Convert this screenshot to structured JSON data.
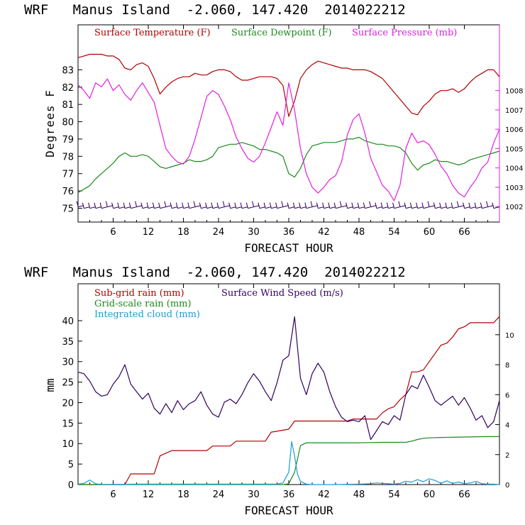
{
  "chart_data": [
    {
      "type": "line",
      "title": "WRF   Manus Island  -2.060, 147.420  2014022212",
      "xlabel": "FORECAST HOUR",
      "ylabel": "Degrees F",
      "xlim": [
        0,
        72
      ],
      "ylim": [
        74.2,
        85.6
      ],
      "y2lim": [
        1001.2,
        1011.4
      ],
      "xticks": [
        6,
        12,
        18,
        24,
        30,
        36,
        42,
        48,
        54,
        60,
        66
      ],
      "yticks": [
        75,
        76,
        77,
        78,
        79,
        80,
        81,
        82,
        83
      ],
      "y2ticks": [
        1002,
        1003,
        1004,
        1005,
        1006,
        1007,
        1008
      ],
      "series": [
        {
          "name": "Surface Temperature (F)",
          "color": "#b00000",
          "axis": "left",
          "x": [
            0,
            1,
            2,
            3,
            4,
            5,
            6,
            7,
            8,
            9,
            10,
            11,
            12,
            13,
            14,
            15,
            16,
            17,
            18,
            19,
            20,
            21,
            22,
            23,
            24,
            25,
            26,
            27,
            28,
            29,
            30,
            31,
            32,
            33,
            34,
            35,
            36,
            37,
            38,
            39,
            40,
            41,
            42,
            43,
            44,
            45,
            46,
            47,
            48,
            49,
            50,
            51,
            52,
            53,
            54,
            55,
            56,
            57,
            58,
            59,
            60,
            61,
            62,
            63,
            64,
            65,
            66,
            67,
            68,
            69,
            70,
            71,
            72
          ],
          "values": [
            83.7,
            83.8,
            83.9,
            83.9,
            83.9,
            83.8,
            83.8,
            83.6,
            83.1,
            83.0,
            83.3,
            83.4,
            83.2,
            82.5,
            81.6,
            82.0,
            82.3,
            82.5,
            82.6,
            82.6,
            82.8,
            82.7,
            82.7,
            82.9,
            83.0,
            83.0,
            82.9,
            82.6,
            82.4,
            82.4,
            82.5,
            82.6,
            82.6,
            82.6,
            82.5,
            82.1,
            80.3,
            81.2,
            82.5,
            83.0,
            83.3,
            83.5,
            83.4,
            83.3,
            83.2,
            83.1,
            83.1,
            83.0,
            83.0,
            83.0,
            82.9,
            82.7,
            82.5,
            82.1,
            81.7,
            81.3,
            80.9,
            80.5,
            80.4,
            80.9,
            81.2,
            81.6,
            81.8,
            81.8,
            81.9,
            81.7,
            81.9,
            82.3,
            82.6,
            82.8,
            83.0,
            83.0,
            82.6
          ]
        },
        {
          "name": "Surface Dewpoint (F)",
          "color": "#1a8a1a",
          "axis": "left",
          "x": [
            0,
            1,
            2,
            3,
            4,
            5,
            6,
            7,
            8,
            9,
            10,
            11,
            12,
            13,
            14,
            15,
            16,
            17,
            18,
            19,
            20,
            21,
            22,
            23,
            24,
            25,
            26,
            27,
            28,
            29,
            30,
            31,
            32,
            33,
            34,
            35,
            36,
            37,
            38,
            39,
            40,
            41,
            42,
            43,
            44,
            45,
            46,
            47,
            48,
            49,
            50,
            51,
            52,
            53,
            54,
            55,
            56,
            57,
            58,
            59,
            60,
            61,
            62,
            63,
            64,
            65,
            66,
            67,
            68,
            69,
            70,
            71,
            72
          ],
          "values": [
            75.9,
            76.1,
            76.3,
            76.7,
            77.0,
            77.3,
            77.6,
            78.0,
            78.2,
            78.0,
            78.0,
            78.1,
            78.0,
            77.7,
            77.4,
            77.3,
            77.4,
            77.5,
            77.6,
            77.8,
            77.7,
            77.7,
            77.8,
            78.0,
            78.5,
            78.6,
            78.7,
            78.7,
            78.8,
            78.7,
            78.6,
            78.4,
            78.4,
            78.3,
            78.2,
            78.0,
            77.0,
            76.8,
            77.3,
            78.1,
            78.6,
            78.7,
            78.8,
            78.8,
            78.8,
            78.9,
            79.0,
            79.0,
            79.1,
            78.9,
            78.8,
            78.7,
            78.7,
            78.6,
            78.6,
            78.5,
            78.2,
            77.6,
            77.2,
            77.5,
            77.6,
            77.8,
            77.7,
            77.7,
            77.6,
            77.5,
            77.6,
            77.8,
            77.9,
            78.0,
            78.1,
            78.2,
            78.3
          ]
        },
        {
          "name": "Surface Pressure (mb)",
          "color": "#e020e0",
          "axis": "right",
          "x": [
            0,
            1,
            2,
            3,
            4,
            5,
            6,
            7,
            8,
            9,
            10,
            11,
            12,
            13,
            14,
            15,
            16,
            17,
            18,
            19,
            20,
            21,
            22,
            23,
            24,
            25,
            26,
            27,
            28,
            29,
            30,
            31,
            32,
            33,
            34,
            35,
            36,
            37,
            38,
            39,
            40,
            41,
            42,
            43,
            44,
            45,
            46,
            47,
            48,
            49,
            50,
            51,
            52,
            53,
            54,
            55,
            56,
            57,
            58,
            59,
            60,
            61,
            62,
            63,
            64,
            65,
            66,
            67,
            68,
            69,
            70,
            71,
            72
          ],
          "values": [
            1008.3,
            1008.0,
            1007.6,
            1008.4,
            1008.2,
            1008.6,
            1008.0,
            1008.3,
            1007.8,
            1007.5,
            1008.0,
            1008.4,
            1007.9,
            1007.4,
            1006.2,
            1005.0,
            1004.6,
            1004.3,
            1004.2,
            1004.6,
            1005.5,
            1006.6,
            1007.7,
            1008.0,
            1007.8,
            1007.2,
            1006.5,
            1005.6,
            1005.0,
            1004.5,
            1004.3,
            1004.6,
            1005.3,
            1006.1,
            1006.9,
            1006.2,
            1008.4,
            1007.0,
            1005.0,
            1003.7,
            1003.0,
            1002.7,
            1003.0,
            1003.4,
            1003.6,
            1004.3,
            1005.7,
            1006.5,
            1006.8,
            1005.8,
            1004.5,
            1003.8,
            1003.1,
            1002.8,
            1002.3,
            1003.1,
            1005.0,
            1005.8,
            1005.3,
            1005.4,
            1005.2,
            1004.7,
            1004.1,
            1003.7,
            1003.1,
            1002.7,
            1002.5,
            1003.0,
            1003.4,
            1004.0,
            1004.3,
            1005.3,
            1006.0
          ]
        }
      ],
      "wind_barbs": {
        "color": "#300060",
        "level_value": 75.2,
        "count": 72
      }
    },
    {
      "type": "line",
      "title": "WRF   Manus Island  -2.060, 147.420  2014022212",
      "xlabel": "FORECAST HOUR",
      "ylabel": "mm",
      "xlim": [
        0,
        72
      ],
      "ylim": [
        0,
        49
      ],
      "y2lim": [
        0,
        13.4
      ],
      "xticks": [
        6,
        12,
        18,
        24,
        30,
        36,
        42,
        48,
        54,
        60,
        66
      ],
      "yticks": [
        0,
        5,
        10,
        15,
        20,
        25,
        30,
        35,
        40
      ],
      "y2ticks": [
        0,
        2,
        4,
        6,
        8,
        10
      ],
      "series": [
        {
          "name": "Sub-grid rain (mm)",
          "color": "#b00000",
          "axis": "left",
          "x": [
            0,
            8,
            9,
            13,
            14,
            16,
            17,
            22,
            23,
            26,
            27,
            32,
            33,
            36,
            37,
            41,
            42,
            46,
            47,
            51,
            52,
            53,
            54,
            55,
            56,
            57,
            58,
            59,
            60,
            61,
            62,
            63,
            64,
            65,
            66,
            67,
            68,
            69,
            70,
            71,
            72
          ],
          "values": [
            0.0,
            0.0,
            2.6,
            2.6,
            7.0,
            8.3,
            8.3,
            8.3,
            9.4,
            9.4,
            10.6,
            10.6,
            12.8,
            13.5,
            15.5,
            15.5,
            15.5,
            15.5,
            16.0,
            16.0,
            17.5,
            18.5,
            19.0,
            20.7,
            22.0,
            27.5,
            27.5,
            28.0,
            30.0,
            32.0,
            34.0,
            34.5,
            36.0,
            38.0,
            38.5,
            39.5,
            39.5,
            39.5,
            39.5,
            39.5,
            41.0
          ]
        },
        {
          "name": "Grid-scale rain (mm)",
          "color": "#1a8a1a",
          "axis": "left",
          "x": [
            0,
            35,
            36,
            37,
            38,
            39,
            40,
            44,
            48,
            52,
            56,
            57,
            58,
            59,
            60,
            62,
            66,
            70,
            72
          ],
          "values": [
            0.0,
            0.0,
            0.2,
            3.0,
            9.5,
            10.2,
            10.2,
            10.2,
            10.2,
            10.3,
            10.3,
            10.6,
            11.0,
            11.3,
            11.4,
            11.5,
            11.6,
            11.7,
            11.7
          ]
        },
        {
          "name": "Integrated cloud (mm)",
          "color": "#1a9bd8",
          "axis": "left",
          "x": [
            0,
            1,
            2,
            3,
            4,
            5,
            6,
            10,
            15,
            20,
            25,
            30,
            34,
            35,
            36,
            36.5,
            37,
            37.5,
            38,
            39,
            40,
            44,
            48,
            50,
            51,
            52,
            53,
            54,
            55,
            56,
            57,
            58,
            59,
            60,
            61,
            62,
            63,
            64,
            65,
            66,
            67,
            68,
            69,
            70,
            71,
            72
          ],
          "values": [
            0.1,
            0.3,
            1.1,
            0.2,
            0.0,
            0.0,
            0.0,
            0.1,
            0.1,
            0.1,
            0.1,
            0.1,
            0.1,
            0.4,
            3.0,
            10.5,
            7.0,
            2.5,
            0.8,
            0.1,
            0.0,
            0.0,
            0.1,
            0.2,
            0.4,
            0.3,
            0.2,
            0.1,
            0.3,
            0.8,
            0.6,
            1.2,
            0.7,
            1.4,
            1.0,
            0.3,
            0.9,
            0.3,
            0.6,
            0.2,
            0.4,
            0.8,
            0.2,
            0.1,
            0.1,
            0.0
          ]
        },
        {
          "name": "Surface Wind Speed (m/s)",
          "color": "#300060",
          "axis": "right",
          "x": [
            0,
            1,
            2,
            3,
            4,
            5,
            6,
            7,
            8,
            9,
            10,
            11,
            12,
            13,
            14,
            15,
            16,
            17,
            18,
            19,
            20,
            21,
            22,
            23,
            24,
            25,
            26,
            27,
            28,
            29,
            30,
            31,
            32,
            33,
            34,
            35,
            36,
            37,
            38,
            39,
            40,
            41,
            42,
            43,
            44,
            45,
            46,
            47,
            48,
            49,
            50,
            51,
            52,
            53,
            54,
            55,
            56,
            57,
            58,
            59,
            60,
            61,
            62,
            63,
            64,
            65,
            66,
            67,
            68,
            69,
            70,
            71,
            72
          ],
          "values": [
            7.5,
            7.4,
            6.9,
            6.2,
            5.9,
            6.0,
            6.7,
            7.2,
            8.0,
            6.7,
            6.2,
            5.7,
            6.1,
            5.1,
            4.7,
            5.4,
            4.8,
            5.6,
            5.0,
            5.4,
            5.6,
            6.2,
            5.3,
            4.7,
            4.5,
            5.5,
            5.7,
            5.4,
            6.0,
            6.8,
            7.4,
            6.9,
            6.2,
            5.6,
            6.8,
            8.3,
            8.6,
            11.2,
            7.1,
            6.0,
            7.4,
            8.1,
            7.5,
            6.2,
            5.2,
            4.5,
            4.2,
            4.3,
            4.2,
            4.6,
            3.0,
            3.6,
            4.2,
            4.0,
            4.6,
            4.3,
            6.0,
            6.6,
            6.4,
            7.3,
            6.5,
            5.6,
            5.3,
            5.6,
            5.9,
            5.3,
            5.8,
            5.1,
            4.3,
            4.6,
            3.8,
            4.2,
            5.6
          ]
        }
      ]
    }
  ]
}
